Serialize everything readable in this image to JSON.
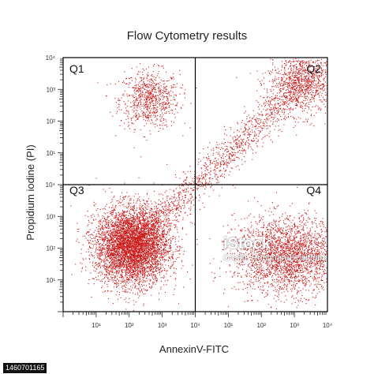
{
  "chart_data": {
    "type": "scatter",
    "title": "Flow Cytometry results",
    "xlabel": "AnnexinV-FITC",
    "ylabel": "Propidium iodine (PI)",
    "x_scale": "log",
    "y_scale": "log",
    "xlim": [
      1,
      100000000
    ],
    "ylim": [
      1,
      100000000
    ],
    "x_tick_labels": [
      "10¹",
      "10²",
      "10³",
      "10⁴",
      "10¹",
      "10²",
      "10³",
      "10⁴"
    ],
    "y_tick_labels": [
      "10¹",
      "10²",
      "10³",
      "10⁴",
      "10¹",
      "10²",
      "10³",
      "10⁴"
    ],
    "quadrant_gate": {
      "x": 10000,
      "y": 10000
    },
    "quadrant_labels": [
      "Q1",
      "Q2",
      "Q3",
      "Q4"
    ],
    "point_color": "#cc1a1a",
    "series": [
      {
        "quadrant": "Q1",
        "cx": 400,
        "cy": 5000000,
        "spread_x": 0.45,
        "spread_y": 0.45,
        "count": 800
      },
      {
        "quadrant": "Q2",
        "cx": 20000000,
        "cy": 20000000,
        "spread_x": 0.55,
        "spread_y": 0.55,
        "count": 1100
      },
      {
        "quadrant": "Q3",
        "cx": 120,
        "cy": 120,
        "spread_x": 0.55,
        "spread_y": 0.6,
        "count": 5200
      },
      {
        "quadrant": "Q4",
        "cx": 6000000,
        "cy": 60,
        "spread_x": 0.8,
        "spread_y": 0.6,
        "count": 2600
      },
      {
        "quadrant": "transition",
        "from": [
          200,
          200
        ],
        "to": [
          20000000,
          20000000
        ],
        "count": 1400
      }
    ],
    "grid": false
  },
  "watermark": {
    "brand": "iStock",
    "credit_line": "Credit: Rungnaree Jaitham",
    "stock_id": "1460701165"
  }
}
